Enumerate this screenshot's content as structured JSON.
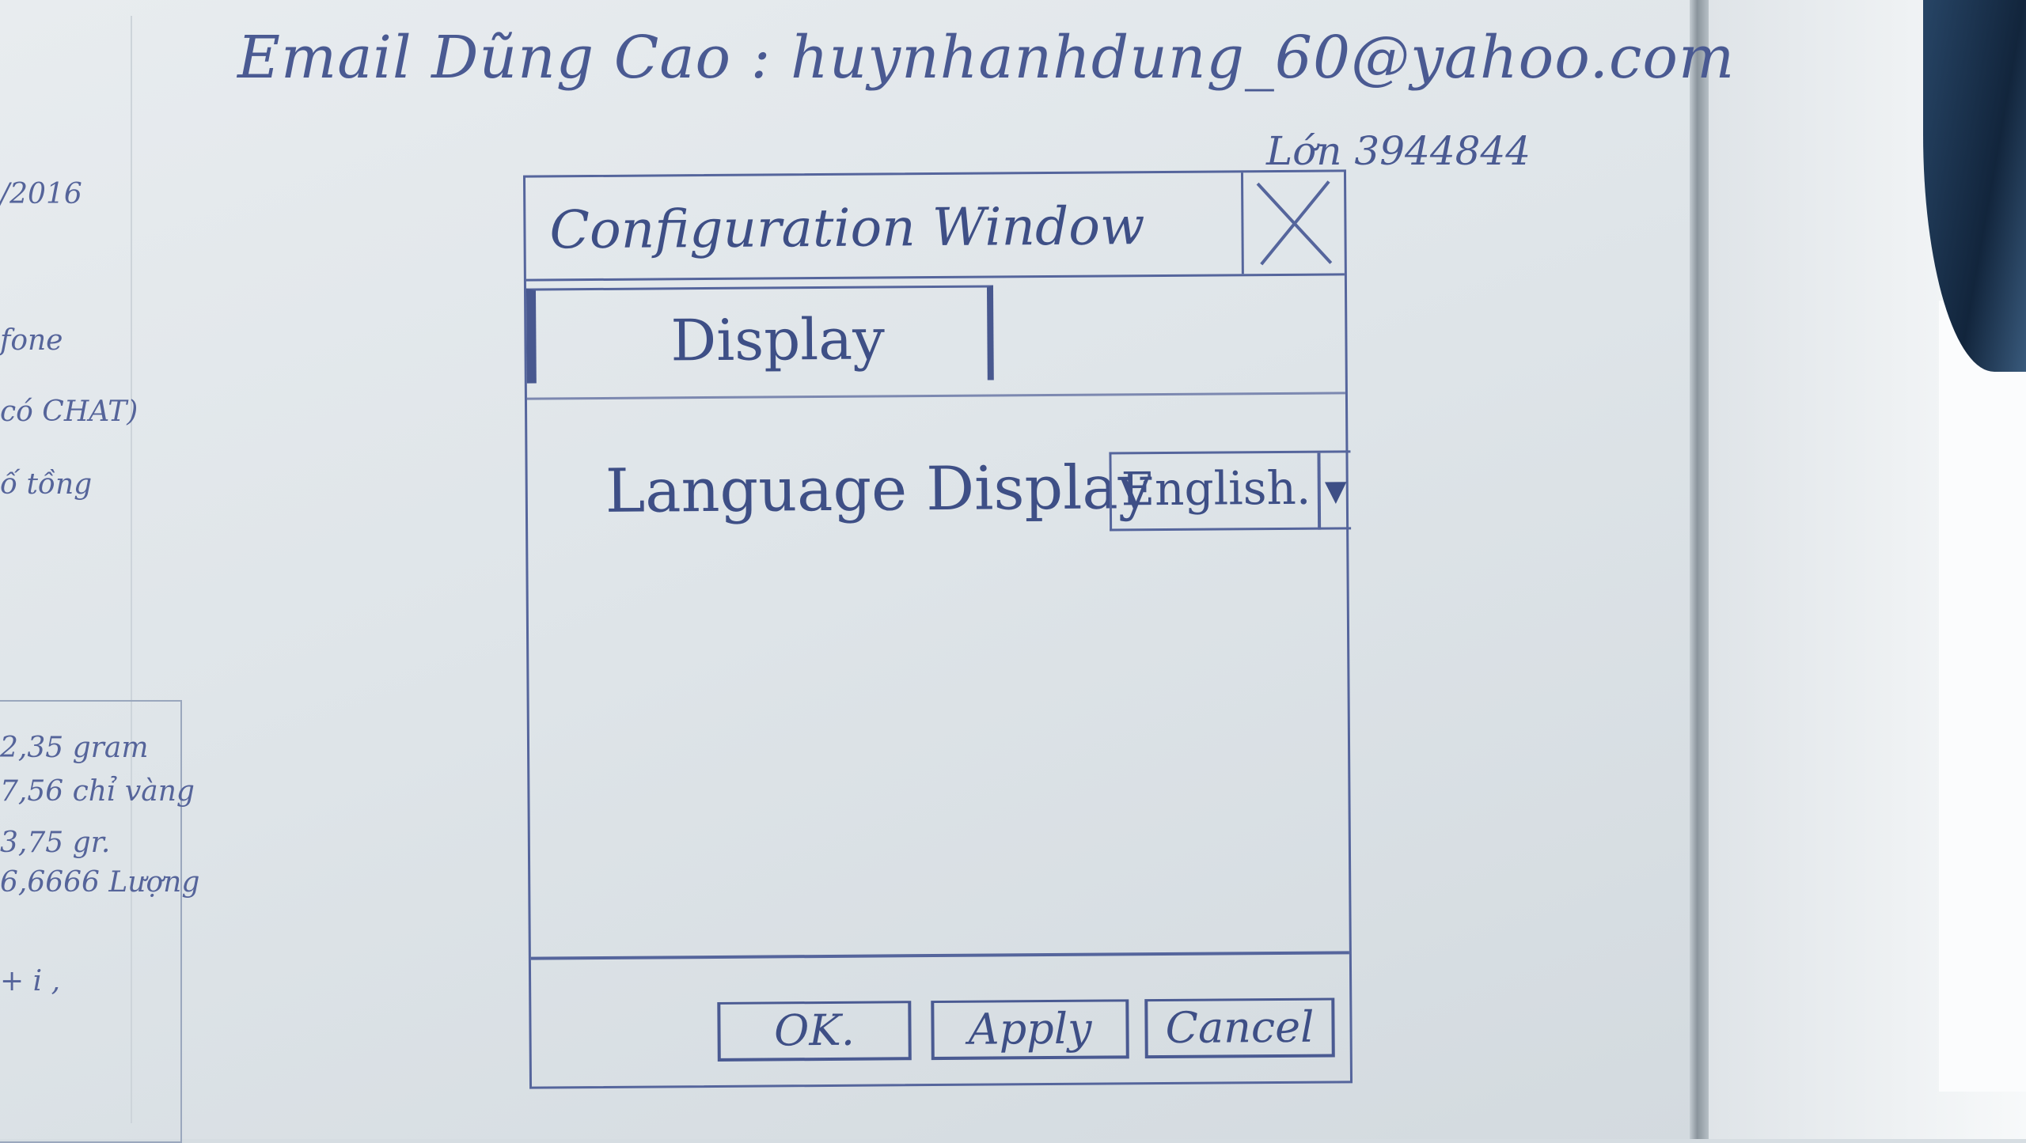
{
  "notes": {
    "header": "Email Dũng Cao : huynhanhdung_60@yahoo.com",
    "phone": "Lớn 3944844",
    "margin": [
      "/2016",
      "fone",
      "có CHAT)",
      "ố tồng",
      "2,35 gram",
      "7,56 chỉ vàng",
      "3,75 gr.",
      "6,6666 Lượng",
      "+ i ,"
    ]
  },
  "dialog": {
    "title": "Configuration Window",
    "close_symbol": "X",
    "tabs": [
      {
        "label": "Display",
        "selected": true
      }
    ],
    "language": {
      "label": "Language Display",
      "selected": "English.",
      "arrow": "▼"
    },
    "buttons": {
      "ok": "OK.",
      "apply": "Apply",
      "cancel": "Cancel"
    }
  },
  "colors": {
    "ink": "#3e4f86",
    "board": "#e4e9ec"
  }
}
